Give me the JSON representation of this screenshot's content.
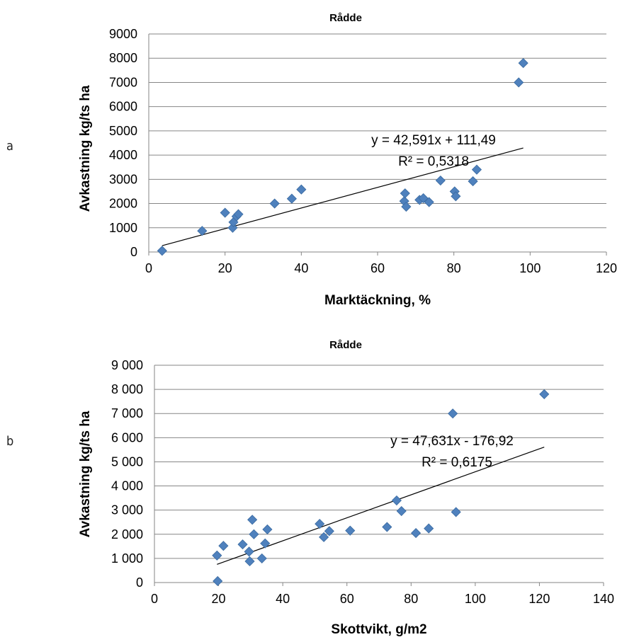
{
  "panels": [
    {
      "letter": "a"
    },
    {
      "letter": "b"
    }
  ],
  "chart_data": [
    {
      "type": "scatter",
      "title": "Rådde",
      "xlabel": "Marktäckning, %",
      "ylabel": "Avkastning kg/ts ha",
      "xlim": [
        0,
        120
      ],
      "ylim": [
        0,
        9000
      ],
      "xticks": [
        "0",
        "20",
        "40",
        "60",
        "80",
        "100",
        "120"
      ],
      "yticks": [
        "0",
        "1000",
        "2000",
        "3000",
        "4000",
        "5000",
        "6000",
        "7000",
        "8000",
        "9000"
      ],
      "grid": true,
      "points": [
        {
          "x": 3.5,
          "y": 50
        },
        {
          "x": 14,
          "y": 870
        },
        {
          "x": 20,
          "y": 1620
        },
        {
          "x": 22,
          "y": 1000
        },
        {
          "x": 22.2,
          "y": 1230
        },
        {
          "x": 23,
          "y": 1470
        },
        {
          "x": 23.5,
          "y": 1560
        },
        {
          "x": 33,
          "y": 2000
        },
        {
          "x": 37.5,
          "y": 2200
        },
        {
          "x": 40,
          "y": 2580
        },
        {
          "x": 67,
          "y": 2100
        },
        {
          "x": 67.2,
          "y": 2420
        },
        {
          "x": 67.5,
          "y": 1870
        },
        {
          "x": 71,
          "y": 2150
        },
        {
          "x": 72,
          "y": 2220
        },
        {
          "x": 73.5,
          "y": 2060
        },
        {
          "x": 76.5,
          "y": 2950
        },
        {
          "x": 80.2,
          "y": 2500
        },
        {
          "x": 80.5,
          "y": 2300
        },
        {
          "x": 85,
          "y": 2920
        },
        {
          "x": 86,
          "y": 3400
        },
        {
          "x": 97,
          "y": 7000
        },
        {
          "x": 98.2,
          "y": 7800
        }
      ],
      "trendline": {
        "slope": 42.591,
        "intercept": 111.49,
        "x_start": 3.5,
        "x_end": 98.2
      },
      "annotations": [
        "y = 42,591x + 111,49",
        "R² = 0,5318"
      ]
    },
    {
      "type": "scatter",
      "title": "Rådde",
      "xlabel": "Skottvikt, g/m2",
      "ylabel": "Avkastning kg/ts ha",
      "xlim": [
        0,
        140
      ],
      "ylim": [
        0,
        9000
      ],
      "xticks": [
        "0",
        "20",
        "40",
        "60",
        "80",
        "100",
        "120",
        "140"
      ],
      "yticks": [
        "0",
        "1 000",
        "2 000",
        "3 000",
        "4 000",
        "5 000",
        "6 000",
        "7 000",
        "8 000",
        "9 000"
      ],
      "grid": true,
      "points": [
        {
          "x": 19.5,
          "y": 1120
        },
        {
          "x": 19.7,
          "y": 60
        },
        {
          "x": 21.5,
          "y": 1520
        },
        {
          "x": 27.5,
          "y": 1580
        },
        {
          "x": 29.5,
          "y": 1280
        },
        {
          "x": 29.7,
          "y": 880
        },
        {
          "x": 30.5,
          "y": 2600
        },
        {
          "x": 31,
          "y": 2000
        },
        {
          "x": 33.5,
          "y": 1000
        },
        {
          "x": 34.5,
          "y": 1620
        },
        {
          "x": 35.2,
          "y": 2200
        },
        {
          "x": 51.5,
          "y": 2430
        },
        {
          "x": 52.8,
          "y": 1880
        },
        {
          "x": 54.5,
          "y": 2130
        },
        {
          "x": 61,
          "y": 2150
        },
        {
          "x": 72.5,
          "y": 2300
        },
        {
          "x": 75.5,
          "y": 3400
        },
        {
          "x": 77,
          "y": 2960
        },
        {
          "x": 81.5,
          "y": 2050
        },
        {
          "x": 85.5,
          "y": 2240
        },
        {
          "x": 93,
          "y": 7000
        },
        {
          "x": 94,
          "y": 2920
        },
        {
          "x": 121.5,
          "y": 7800
        }
      ],
      "trendline": {
        "slope": 47.631,
        "intercept": -176.92,
        "x_start": 19.5,
        "x_end": 121.5
      },
      "annotations": [
        "y = 47,631x - 176,92",
        "R² = 0,6175"
      ]
    }
  ]
}
